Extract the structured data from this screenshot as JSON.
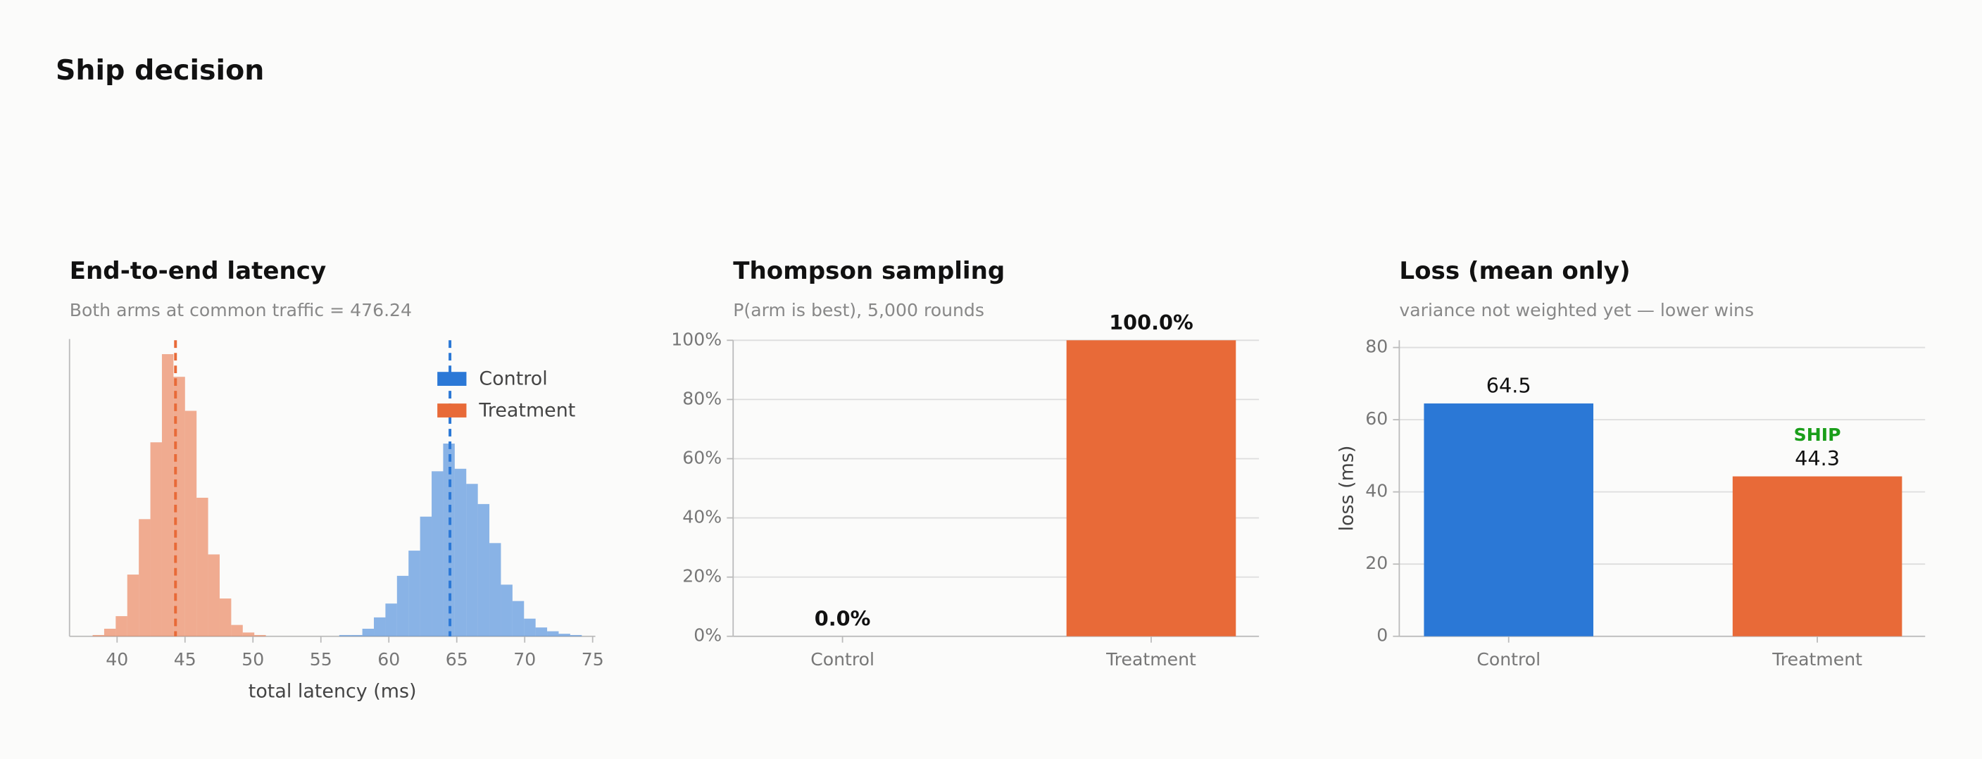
{
  "title": "Ship decision",
  "chart_data": [
    {
      "type": "histogram",
      "title": "End-to-end latency",
      "subtitle": "Both arms at common traffic = 476.24",
      "xlabel": "total latency (ms)",
      "xlim": [
        36.5,
        75.2
      ],
      "xticks": [
        40,
        45,
        50,
        55,
        60,
        65,
        70,
        75
      ],
      "ylim": [
        0,
        235
      ],
      "legend": "upper right",
      "series": [
        {
          "name": "Control",
          "color": "#2b78d6",
          "mean": 64.5,
          "bins": [
            56.35,
            57.2,
            58.05,
            58.9,
            59.75,
            60.6,
            61.45,
            62.3,
            63.15,
            64.0,
            64.85,
            65.7,
            66.55,
            67.4,
            68.25,
            69.1,
            69.95,
            70.8,
            71.65,
            72.5,
            73.35,
            74.2
          ],
          "values": [
            1,
            1,
            6,
            15,
            26,
            48,
            68,
            95,
            131,
            153,
            133,
            121,
            105,
            74,
            41,
            28,
            14,
            7,
            4,
            2,
            1
          ]
        },
        {
          "name": "Treatment",
          "color": "#e86a38",
          "mean": 44.3,
          "bins": [
            38.2,
            39.05,
            39.9,
            40.75,
            41.6,
            42.45,
            43.3,
            44.15,
            45.0,
            45.85,
            46.7,
            47.55,
            48.4,
            49.25,
            50.1,
            50.95
          ],
          "values": [
            1,
            6,
            16,
            49,
            93,
            154,
            224,
            206,
            179,
            110,
            65,
            30,
            9,
            3,
            1
          ]
        }
      ]
    },
    {
      "type": "bar",
      "title": "Thompson sampling",
      "subtitle": "P(arm is best), 5,000 rounds",
      "categories": [
        "Control",
        "Treatment"
      ],
      "values": [
        0.0,
        100.0
      ],
      "value_labels": [
        "0.0%",
        "100.0%"
      ],
      "colors": [
        "#2b78d6",
        "#e86a38"
      ],
      "ylim": [
        0,
        100
      ],
      "yticks": [
        {
          "value": 0,
          "label": "0%"
        },
        {
          "value": 20,
          "label": "20%"
        },
        {
          "value": 40,
          "label": "40%"
        },
        {
          "value": 60,
          "label": "60%"
        },
        {
          "value": 80,
          "label": "80%"
        },
        {
          "value": 100,
          "label": "100%"
        }
      ],
      "grid": true
    },
    {
      "type": "bar",
      "title": "Loss (mean only)",
      "subtitle": "variance not weighted yet — lower wins",
      "ylabel": "loss (ms)",
      "categories": [
        "Control",
        "Treatment"
      ],
      "values": [
        64.5,
        44.3
      ],
      "colors": [
        "#2b78d6",
        "#e86a38"
      ],
      "ylim": [
        0,
        82
      ],
      "yticks": [
        0,
        20,
        40,
        60,
        80
      ],
      "grid": true,
      "annotation": "SHIP",
      "annotation_color": "#1a9e1a"
    }
  ]
}
